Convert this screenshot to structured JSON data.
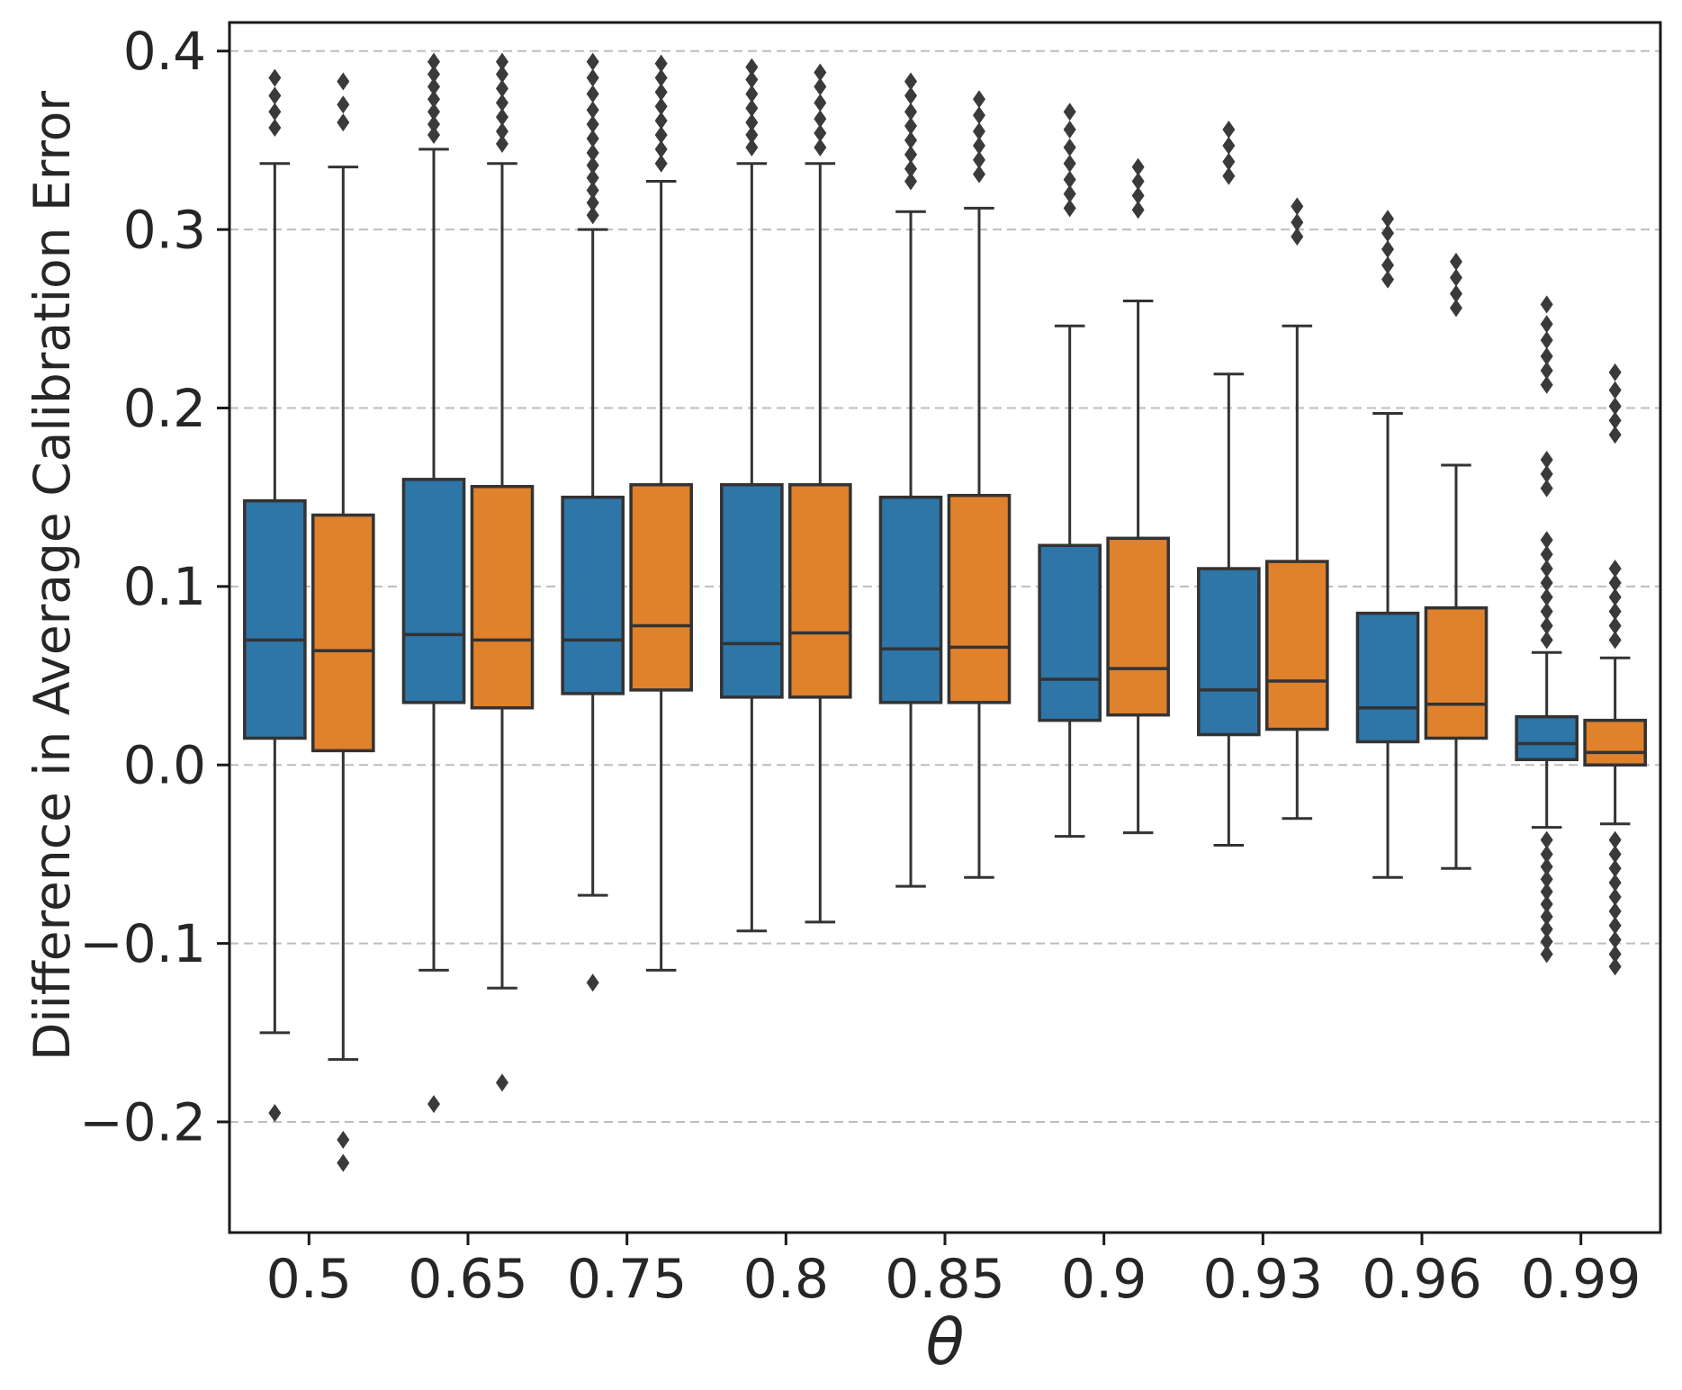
{
  "chart_data": {
    "type": "boxplot",
    "title": "",
    "xlabel": "θ",
    "ylabel": "Diifference in Average Calibration Error",
    "categories": [
      "0.5",
      "0.65",
      "0.75",
      "0.8",
      "0.85",
      "0.9",
      "0.93",
      "0.96",
      "0.99"
    ],
    "yticks": [
      0.4,
      0.3,
      0.2,
      0.1,
      0.0,
      -0.1,
      -0.2
    ],
    "ylim": [
      -0.262,
      0.416
    ],
    "grid": "horizontal-dashed",
    "grid_color": "#bdbdbd",
    "edge_color": "#333333",
    "flier_color": "#3a3a3a",
    "legend": "none",
    "series": [
      {
        "name": "series-1-blue",
        "color": "#2e75a8",
        "boxes": [
          {
            "whislo": -0.15,
            "q1": 0.015,
            "med": 0.07,
            "q3": 0.148,
            "whishi": 0.337,
            "fliers_high": [
              0.357,
              0.366,
              0.375,
              0.385
            ],
            "fliers_low": [
              -0.195
            ]
          },
          {
            "whislo": -0.115,
            "q1": 0.035,
            "med": 0.073,
            "q3": 0.16,
            "whishi": 0.345,
            "fliers_high": [
              0.353,
              0.359,
              0.366,
              0.373,
              0.38,
              0.387,
              0.394
            ],
            "fliers_low": [
              -0.19
            ]
          },
          {
            "whislo": -0.073,
            "q1": 0.04,
            "med": 0.07,
            "q3": 0.15,
            "whishi": 0.3,
            "fliers_high": [
              0.308,
              0.315,
              0.322,
              0.329,
              0.336,
              0.343,
              0.351,
              0.359,
              0.367,
              0.376,
              0.385,
              0.394
            ],
            "fliers_low": [
              -0.122
            ]
          },
          {
            "whislo": -0.093,
            "q1": 0.038,
            "med": 0.068,
            "q3": 0.157,
            "whishi": 0.337,
            "fliers_high": [
              0.346,
              0.353,
              0.36,
              0.368,
              0.376,
              0.384,
              0.391
            ],
            "fliers_low": []
          },
          {
            "whislo": -0.068,
            "q1": 0.035,
            "med": 0.065,
            "q3": 0.15,
            "whishi": 0.31,
            "fliers_high": [
              0.327,
              0.334,
              0.342,
              0.35,
              0.358,
              0.366,
              0.375,
              0.383
            ],
            "fliers_low": []
          },
          {
            "whislo": -0.04,
            "q1": 0.025,
            "med": 0.048,
            "q3": 0.123,
            "whishi": 0.246,
            "fliers_high": [
              0.312,
              0.32,
              0.328,
              0.337,
              0.346,
              0.356,
              0.366
            ],
            "fliers_low": []
          },
          {
            "whislo": -0.045,
            "q1": 0.017,
            "med": 0.042,
            "q3": 0.11,
            "whishi": 0.219,
            "fliers_high": [
              0.33,
              0.338,
              0.347,
              0.356
            ],
            "fliers_low": []
          },
          {
            "whislo": -0.063,
            "q1": 0.013,
            "med": 0.032,
            "q3": 0.085,
            "whishi": 0.197,
            "fliers_high": [
              0.272,
              0.28,
              0.289,
              0.298,
              0.306
            ],
            "fliers_low": []
          },
          {
            "whislo": -0.035,
            "q1": 0.003,
            "med": 0.012,
            "q3": 0.027,
            "whishi": 0.063,
            "fliers_high": [
              0.07,
              0.078,
              0.086,
              0.094,
              0.102,
              0.11,
              0.118,
              0.126,
              0.155,
              0.163,
              0.171,
              0.213,
              0.221,
              0.229,
              0.238,
              0.247,
              0.258
            ],
            "fliers_low": [
              -0.042,
              -0.05,
              -0.057,
              -0.064,
              -0.071,
              -0.078,
              -0.085,
              -0.092,
              -0.099,
              -0.106
            ]
          }
        ]
      },
      {
        "name": "series-2-orange",
        "color": "#e0812c",
        "boxes": [
          {
            "whislo": -0.165,
            "q1": 0.008,
            "med": 0.064,
            "q3": 0.14,
            "whishi": 0.335,
            "fliers_high": [
              0.36,
              0.37,
              0.383
            ],
            "fliers_low": [
              -0.21,
              -0.223
            ]
          },
          {
            "whislo": -0.125,
            "q1": 0.032,
            "med": 0.07,
            "q3": 0.156,
            "whishi": 0.337,
            "fliers_high": [
              0.348,
              0.355,
              0.363,
              0.371,
              0.379,
              0.387,
              0.394
            ],
            "fliers_low": [
              -0.178
            ]
          },
          {
            "whislo": -0.115,
            "q1": 0.042,
            "med": 0.078,
            "q3": 0.157,
            "whishi": 0.327,
            "fliers_high": [
              0.337,
              0.345,
              0.353,
              0.361,
              0.369,
              0.377,
              0.385,
              0.393
            ],
            "fliers_low": []
          },
          {
            "whislo": -0.088,
            "q1": 0.038,
            "med": 0.074,
            "q3": 0.157,
            "whishi": 0.337,
            "fliers_high": [
              0.346,
              0.354,
              0.362,
              0.371,
              0.38,
              0.388
            ],
            "fliers_low": []
          },
          {
            "whislo": -0.063,
            "q1": 0.035,
            "med": 0.066,
            "q3": 0.151,
            "whishi": 0.312,
            "fliers_high": [
              0.331,
              0.339,
              0.347,
              0.355,
              0.364,
              0.373
            ],
            "fliers_low": []
          },
          {
            "whislo": -0.038,
            "q1": 0.028,
            "med": 0.054,
            "q3": 0.127,
            "whishi": 0.26,
            "fliers_high": [
              0.311,
              0.319,
              0.327,
              0.335
            ],
            "fliers_low": []
          },
          {
            "whislo": -0.03,
            "q1": 0.02,
            "med": 0.047,
            "q3": 0.114,
            "whishi": 0.246,
            "fliers_high": [
              0.296,
              0.304,
              0.313
            ],
            "fliers_low": []
          },
          {
            "whislo": -0.058,
            "q1": 0.015,
            "med": 0.034,
            "q3": 0.088,
            "whishi": 0.168,
            "fliers_high": [
              0.256,
              0.264,
              0.273,
              0.282
            ],
            "fliers_low": []
          },
          {
            "whislo": -0.033,
            "q1": 0.0,
            "med": 0.007,
            "q3": 0.025,
            "whishi": 0.06,
            "fliers_high": [
              0.07,
              0.078,
              0.086,
              0.094,
              0.102,
              0.11,
              0.185,
              0.193,
              0.201,
              0.21,
              0.22
            ],
            "fliers_low": [
              -0.042,
              -0.05,
              -0.058,
              -0.066,
              -0.074,
              -0.082,
              -0.09,
              -0.098,
              -0.106,
              -0.113
            ]
          }
        ]
      }
    ]
  }
}
